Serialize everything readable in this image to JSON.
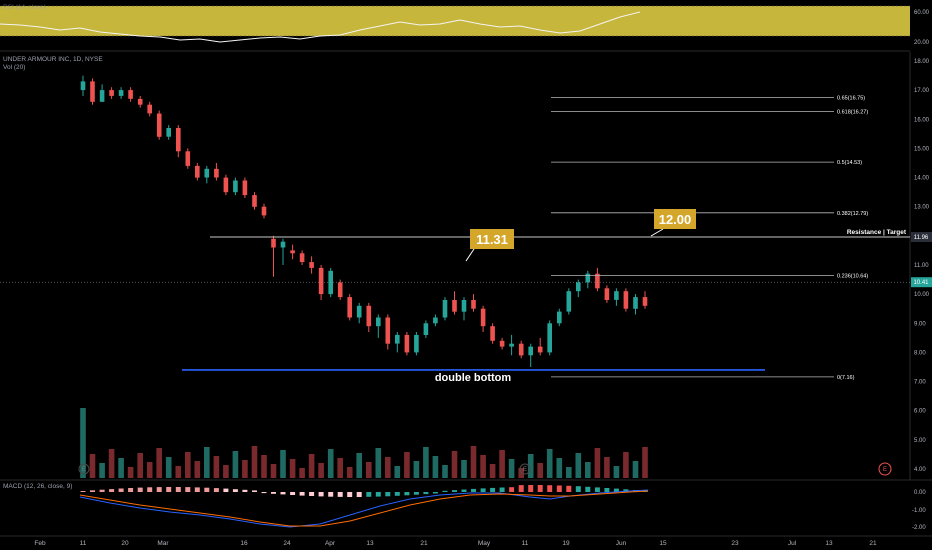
{
  "panes": {
    "rsi": {
      "title": "RSI (14, close)",
      "ticks": [
        "60.00",
        "20.00"
      ]
    },
    "price": {
      "symbol_title": "UNDER ARMOUR INC, 1D, NYSE",
      "volume_label": "Vol (20)",
      "ticks": [
        "18.00",
        "17.00",
        "16.00",
        "15.00",
        "14.00",
        "13.00",
        "12.00",
        "11.00",
        "10.00",
        "9.00",
        "8.00",
        "7.00",
        "6.00",
        "5.00",
        "4.00"
      ],
      "last_price_label": "10.41",
      "resistance_price_label": "11.96"
    },
    "macd": {
      "title": "MACD (12, 26, close, 9)",
      "ticks": [
        "0.00",
        "-1.00",
        "-2.00"
      ]
    }
  },
  "x_axis": {
    "labels": [
      "Feb",
      "11",
      "20",
      "Mar",
      "16",
      "24",
      "Apr",
      "13",
      "21",
      "May",
      "11",
      "19",
      "Jun",
      "15",
      "23",
      "Jul",
      "13",
      "21"
    ]
  },
  "annotations": {
    "callout_1131": "11.31",
    "callout_1200": "12.00",
    "resistance_text": "Resistance | Target",
    "double_bottom_text": "double bottom",
    "earnings_marker": "E"
  },
  "colors": {
    "background": "#000000",
    "up": "#26a69a",
    "down": "#ef5350",
    "vol_up": "#1f6b63",
    "vol_down": "#7a2a2d",
    "fib_line": "#b8b8b8",
    "support_line": "#2962ff",
    "callout": "#d4a62a",
    "rsi_band": "#d7c640",
    "macd_line": "#2962ff",
    "signal_line": "#ff6d00"
  },
  "chart_data": {
    "type": "candlestick",
    "title": "UNDER ARMOUR INC, 1D, NYSE",
    "ylim": [
      3.8,
      18.2
    ],
    "candles": [
      [
        17.0,
        17.5,
        16.8,
        17.3
      ],
      [
        17.3,
        17.4,
        16.5,
        16.6
      ],
      [
        16.6,
        17.2,
        16.6,
        17.0
      ],
      [
        17.0,
        17.1,
        16.7,
        16.8
      ],
      [
        16.8,
        17.1,
        16.7,
        17.0
      ],
      [
        17.0,
        17.1,
        16.6,
        16.7
      ],
      [
        16.7,
        16.8,
        16.4,
        16.5
      ],
      [
        16.5,
        16.6,
        16.1,
        16.2
      ],
      [
        16.2,
        16.3,
        15.3,
        15.4
      ],
      [
        15.4,
        15.8,
        15.3,
        15.7
      ],
      [
        15.7,
        15.8,
        14.7,
        14.9
      ],
      [
        14.9,
        15.0,
        14.3,
        14.4
      ],
      [
        14.4,
        14.5,
        13.9,
        14.0
      ],
      [
        14.0,
        14.4,
        13.8,
        14.3
      ],
      [
        14.3,
        14.5,
        13.9,
        14.0
      ],
      [
        14.0,
        14.1,
        13.4,
        13.5
      ],
      [
        13.5,
        14.0,
        13.4,
        13.9
      ],
      [
        13.9,
        14.0,
        13.3,
        13.4
      ],
      [
        13.4,
        13.5,
        12.9,
        13.0
      ],
      [
        13.0,
        13.1,
        12.6,
        12.7
      ],
      [
        11.9,
        12.0,
        10.6,
        11.6
      ],
      [
        11.6,
        11.9,
        11.0,
        11.8
      ],
      [
        11.5,
        11.7,
        11.2,
        11.4
      ],
      [
        11.4,
        11.5,
        11.0,
        11.1
      ],
      [
        11.1,
        11.3,
        10.7,
        10.9
      ],
      [
        10.9,
        11.0,
        9.8,
        10.0
      ],
      [
        10.0,
        10.9,
        9.9,
        10.8
      ],
      [
        10.4,
        10.5,
        9.8,
        9.9
      ],
      [
        9.9,
        10.0,
        9.1,
        9.2
      ],
      [
        9.2,
        9.7,
        9.0,
        9.6
      ],
      [
        9.6,
        9.7,
        8.7,
        8.9
      ],
      [
        8.9,
        9.3,
        8.5,
        9.2
      ],
      [
        9.2,
        9.3,
        8.1,
        8.3
      ],
      [
        8.3,
        8.7,
        8.0,
        8.6
      ],
      [
        8.6,
        8.7,
        7.9,
        8.0
      ],
      [
        8.0,
        8.7,
        7.9,
        8.6
      ],
      [
        8.6,
        9.1,
        8.5,
        9.0
      ],
      [
        9.0,
        9.3,
        8.9,
        9.2
      ],
      [
        9.2,
        9.9,
        9.1,
        9.8
      ],
      [
        9.8,
        10.1,
        9.3,
        9.4
      ],
      [
        9.4,
        9.9,
        9.1,
        9.8
      ],
      [
        9.8,
        10.0,
        9.4,
        9.5
      ],
      [
        9.5,
        9.6,
        8.7,
        8.9
      ],
      [
        8.9,
        9.0,
        8.3,
        8.4
      ],
      [
        8.4,
        8.5,
        8.1,
        8.2
      ],
      [
        8.2,
        8.6,
        7.9,
        8.3
      ],
      [
        8.3,
        8.4,
        7.8,
        7.9
      ],
      [
        7.9,
        8.3,
        7.5,
        8.2
      ],
      [
        8.2,
        8.5,
        7.9,
        8.0
      ],
      [
        8.0,
        9.1,
        7.9,
        9.0
      ],
      [
        9.0,
        9.5,
        8.9,
        9.4
      ],
      [
        9.4,
        10.2,
        9.3,
        10.1
      ],
      [
        10.1,
        10.5,
        9.9,
        10.4
      ],
      [
        10.4,
        10.8,
        10.2,
        10.7
      ],
      [
        10.7,
        10.9,
        10.1,
        10.2
      ],
      [
        10.2,
        10.3,
        9.7,
        9.8
      ],
      [
        9.8,
        10.2,
        9.6,
        10.1
      ],
      [
        10.1,
        10.2,
        9.4,
        9.5
      ],
      [
        9.5,
        10.0,
        9.3,
        9.9
      ],
      [
        9.9,
        10.1,
        9.5,
        9.6
      ]
    ],
    "support_level": 7.4,
    "resistance_level": 11.96,
    "fibonacci": [
      {
        "label": "0.65(16.75)",
        "value": 16.75
      },
      {
        "label": "0.618(16.27)",
        "value": 16.27
      },
      {
        "label": "0.5(14.53)",
        "value": 14.53
      },
      {
        "label": "0.382(12.79)",
        "value": 12.79
      },
      {
        "label": "0.236(10.64)",
        "value": 10.64
      },
      {
        "label": "0(7.16)",
        "value": 7.16
      }
    ],
    "last_price": 10.41
  }
}
